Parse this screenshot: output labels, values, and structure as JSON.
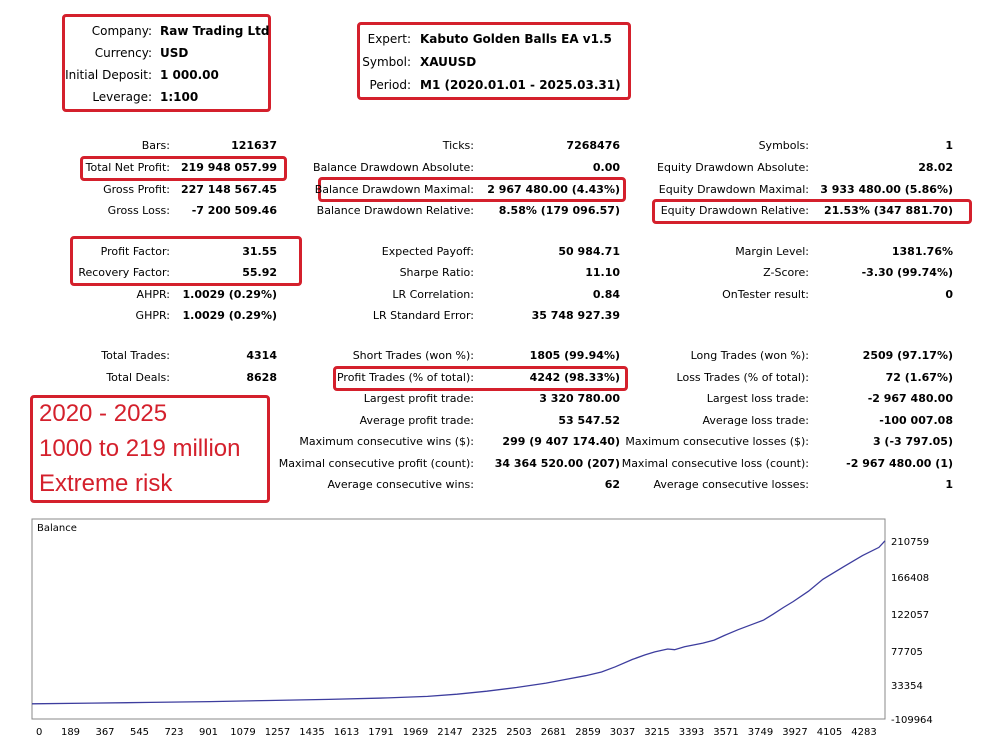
{
  "account": {
    "company_label": "Company:",
    "company": "Raw Trading Ltd",
    "currency_label": "Currency:",
    "currency": "USD",
    "deposit_label": "Initial Deposit:",
    "deposit": "1 000.00",
    "leverage_label": "Leverage:",
    "leverage": "1:100"
  },
  "expert": {
    "expert_label": "Expert:",
    "expert": "Kabuto Golden Balls EA v1.5",
    "symbol_label": "Symbol:",
    "symbol": "XAUUSD",
    "period_label": "Period:",
    "period": "M1 (2020.01.01 - 2025.03.31)"
  },
  "stats": {
    "col1": [
      {
        "label": "Bars:",
        "value": "121637"
      },
      {
        "label": "Total Net Profit:",
        "value": "219 948 057.99"
      },
      {
        "label": "Gross Profit:",
        "value": "227 148 567.45"
      },
      {
        "label": "Gross Loss:",
        "value": "-7 200 509.46"
      },
      {
        "label": "Profit Factor:",
        "value": "31.55"
      },
      {
        "label": "Recovery Factor:",
        "value": "55.92"
      },
      {
        "label": "AHPR:",
        "value": "1.0029 (0.29%)"
      },
      {
        "label": "GHPR:",
        "value": "1.0029 (0.29%)"
      },
      {
        "label": "Total Trades:",
        "value": "4314"
      },
      {
        "label": "Total Deals:",
        "value": "8628"
      }
    ],
    "col2": [
      {
        "label": "Ticks:",
        "value": "7268476"
      },
      {
        "label": "Balance Drawdown Absolute:",
        "value": "0.00"
      },
      {
        "label": "Balance Drawdown Maximal:",
        "value": "2 967 480.00 (4.43%)"
      },
      {
        "label": "Balance Drawdown Relative:",
        "value": "8.58% (179 096.57)"
      },
      {
        "label": "Expected Payoff:",
        "value": "50 984.71"
      },
      {
        "label": "Sharpe Ratio:",
        "value": "11.10"
      },
      {
        "label": "LR Correlation:",
        "value": "0.84"
      },
      {
        "label": "LR Standard Error:",
        "value": "35 748 927.39"
      },
      {
        "label": "Short Trades (won %):",
        "value": "1805 (99.94%)"
      },
      {
        "label": "Profit Trades (% of total):",
        "value": "4242 (98.33%)"
      },
      {
        "label": "Largest profit trade:",
        "value": "3 320 780.00"
      },
      {
        "label": "Average profit trade:",
        "value": "53 547.52"
      },
      {
        "label": "Maximum consecutive wins ($):",
        "value": "299 (9 407 174.40)"
      },
      {
        "label": "Maximal consecutive profit (count):",
        "value": "34 364 520.00 (207)"
      },
      {
        "label": "Average consecutive wins:",
        "value": "62"
      }
    ],
    "col3": [
      {
        "label": "Symbols:",
        "value": "1"
      },
      {
        "label": "Equity Drawdown Absolute:",
        "value": "28.02"
      },
      {
        "label": "Equity Drawdown Maximal:",
        "value": "3 933 480.00 (5.86%)"
      },
      {
        "label": "Equity Drawdown Relative:",
        "value": "21.53% (347 881.70)"
      },
      {
        "label": "Margin Level:",
        "value": "1381.76%"
      },
      {
        "label": "Z-Score:",
        "value": "-3.30 (99.74%)"
      },
      {
        "label": "OnTester result:",
        "value": "0"
      },
      {
        "label": "Long Trades (won %):",
        "value": "2509 (97.17%)"
      },
      {
        "label": "Loss Trades (% of total):",
        "value": "72 (1.67%)"
      },
      {
        "label": "Largest loss trade:",
        "value": "-2 967 480.00"
      },
      {
        "label": "Average loss trade:",
        "value": "-100 007.08"
      },
      {
        "label": "Maximum consecutive losses ($):",
        "value": "3 (-3 797.05)"
      },
      {
        "label": "Maximal consecutive loss (count):",
        "value": "-2 967 480.00 (1)"
      },
      {
        "label": "Average consecutive losses:",
        "value": "1"
      }
    ]
  },
  "annotation": {
    "line1": "2020 - 2025",
    "line2": "1000 to 219 million",
    "line3": "Extreme risk",
    "color": "#d4202c"
  },
  "chart_data": {
    "type": "line",
    "title": "Balance",
    "x_ticks": [
      "0",
      "189",
      "367",
      "545",
      "723",
      "901",
      "1079",
      "1257",
      "1435",
      "1613",
      "1791",
      "1969",
      "2147",
      "2325",
      "2503",
      "2681",
      "2859",
      "3037",
      "3215",
      "3393",
      "3571",
      "3749",
      "3927",
      "4105",
      "4283"
    ],
    "y_ticks": [
      "210759",
      "166408",
      "122057",
      "77705",
      "33354",
      "-109964"
    ],
    "xlim": [
      0,
      4314
    ],
    "ylim": [
      -11000000,
      221000000
    ],
    "line_color": "#3d3d9e",
    "series": [
      {
        "x": [
          0,
          300,
          600,
          900,
          1200,
          1500,
          1800,
          2000,
          2150,
          2300,
          2450,
          2600,
          2700,
          2800,
          2880,
          2950,
          3037,
          3100,
          3150,
          3215,
          3250,
          3300,
          3393,
          3450,
          3500,
          3571,
          3650,
          3700,
          3749,
          3800,
          3850,
          3927,
          4000,
          4105,
          4200,
          4283,
          4314
        ],
        "y": [
          1000,
          1000000,
          2000000,
          3000000,
          4500000,
          6000000,
          8000000,
          10000000,
          13000000,
          17000000,
          22000000,
          28000000,
          33000000,
          38000000,
          43000000,
          50000000,
          60000000,
          66000000,
          70000000,
          74000000,
          73000000,
          77000000,
          82000000,
          86000000,
          92000000,
          100000000,
          108000000,
          113000000,
          121000000,
          130000000,
          138000000,
          152000000,
          168000000,
          185000000,
          200000000,
          211000000,
          219948058
        ]
      }
    ]
  }
}
